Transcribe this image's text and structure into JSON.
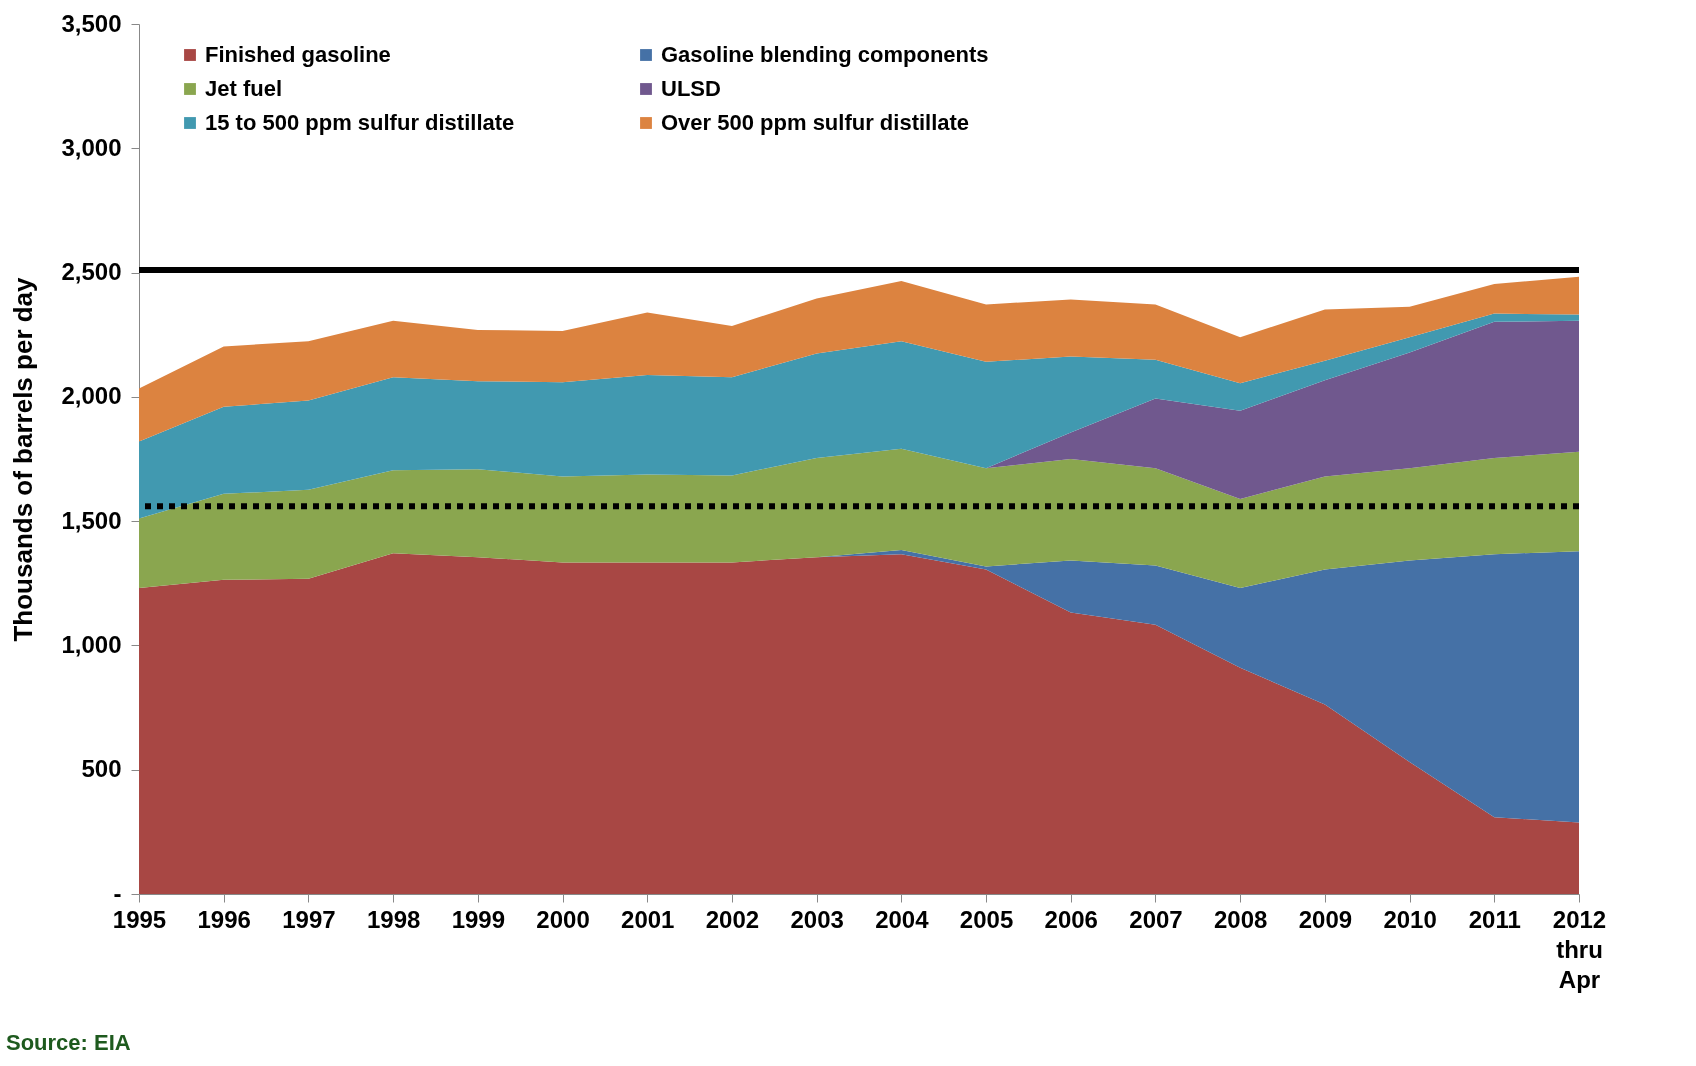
{
  "chart_data": {
    "type": "area",
    "stacked": true,
    "ylabel": "Thousands of barrels per day",
    "categories": [
      "1995",
      "1996",
      "1997",
      "1998",
      "1999",
      "2000",
      "2001",
      "2002",
      "2003",
      "2004",
      "2005",
      "2006",
      "2007",
      "2008",
      "2009",
      "2010",
      "2011",
      "2012\nthru\nApr"
    ],
    "series": [
      {
        "name": "Finished gasoline",
        "color": "#a84744",
        "values": [
          1231,
          1264,
          1268,
          1371,
          1355,
          1334,
          1334,
          1334,
          1355,
          1367,
          1305,
          1132,
          1083,
          910,
          762,
          531,
          309,
          288
        ]
      },
      {
        "name": "Gasoline blending components",
        "color": "#4571a6",
        "values": [
          0,
          0,
          0,
          0,
          0,
          0,
          0,
          0,
          0,
          17,
          13,
          210,
          239,
          321,
          543,
          811,
          1058,
          1091
        ]
      },
      {
        "name": "Jet fuel",
        "color": "#8aa64f",
        "values": [
          280,
          346,
          358,
          334,
          354,
          346,
          354,
          350,
          399,
          407,
          395,
          408,
          391,
          358,
          375,
          371,
          387,
          400
        ]
      },
      {
        "name": "ULSD",
        "color": "#70588e",
        "values": [
          0,
          0,
          0,
          0,
          0,
          0,
          0,
          0,
          0,
          0,
          0,
          107,
          280,
          355,
          387,
          465,
          548,
          527
        ]
      },
      {
        "name": "15 to 500 ppm sulfur distillate",
        "color": "#4199b0",
        "values": [
          309,
          350,
          359,
          374,
          354,
          379,
          400,
          395,
          420,
          433,
          428,
          305,
          156,
          111,
          78,
          62,
          33,
          25
        ]
      },
      {
        "name": "Over 500 ppm sulfur distillate",
        "color": "#dc8340",
        "values": [
          214,
          243,
          239,
          227,
          206,
          206,
          251,
          206,
          222,
          242,
          231,
          230,
          223,
          185,
          206,
          123,
          119,
          152
        ]
      }
    ],
    "ylim": [
      0,
      3500
    ],
    "yticks": [
      {
        "value": 0,
        "label": "-"
      },
      {
        "value": 500,
        "label": "500"
      },
      {
        "value": 1000,
        "label": "1,000"
      },
      {
        "value": 1500,
        "label": "1,500"
      },
      {
        "value": 2000,
        "label": "2,000"
      },
      {
        "value": 2500,
        "label": "2,500"
      },
      {
        "value": 3000,
        "label": "3,000"
      },
      {
        "value": 3500,
        "label": "3,500"
      }
    ],
    "ref_lines": [
      {
        "axis": "y",
        "value": 2510,
        "color": "#000000",
        "line_style": "solid"
      },
      {
        "axis": "y",
        "value": 1560,
        "color": "#000000",
        "line_style": "dotted"
      }
    ],
    "legend": "top left",
    "grid": false,
    "annotations": [
      "Source: EIA"
    ]
  }
}
